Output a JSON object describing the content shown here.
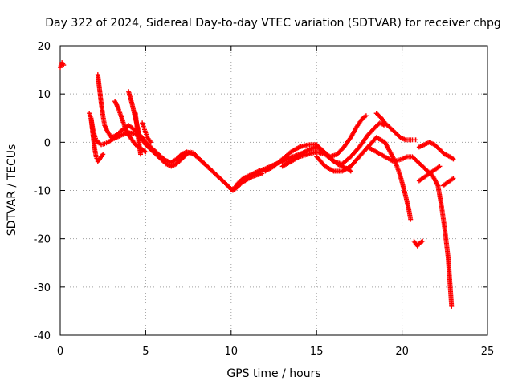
{
  "chart_data": {
    "type": "scatter",
    "title": "Day 322 of 2024, Sidereal Day-to-day VTEC variation (SDTVAR) for receiver chpg",
    "xlabel": "GPS time / hours",
    "ylabel": "SDTVAR / TECUs",
    "xlim": [
      0,
      25
    ],
    "ylim": [
      -40,
      20
    ],
    "xticks": [
      0,
      5,
      10,
      15,
      20,
      25
    ],
    "yticks": [
      -40,
      -30,
      -20,
      -10,
      0,
      10,
      20
    ],
    "grid": true,
    "marker": "+",
    "color": "#ff0000",
    "series": [
      {
        "name": "s1",
        "x": [
          0.0,
          0.1,
          0.2
        ],
        "y": [
          15.5,
          16.5,
          16.0
        ]
      },
      {
        "name": "s2",
        "x": [
          1.7,
          1.8,
          1.9,
          2.0,
          2.1,
          2.2,
          2.4,
          2.6,
          2.8,
          3.0,
          3.3,
          3.6,
          4.0,
          4.3,
          4.5,
          4.8,
          5.0,
          5.3,
          5.6,
          5.9,
          6.2,
          6.5,
          6.8,
          7.1,
          7.4,
          7.6,
          7.8,
          8.0,
          8.3,
          8.6,
          8.9,
          9.2,
          9.5,
          9.8,
          10.0,
          10.2,
          10.4,
          10.7,
          11.0,
          11.3,
          11.6,
          12.0,
          12.3,
          12.6,
          13.0,
          13.3,
          13.6,
          14.0,
          14.3,
          14.6,
          15.0,
          15.3,
          15.6,
          15.9,
          16.2,
          16.5,
          16.8,
          17.0
        ],
        "y": [
          6.0,
          5.0,
          3.0,
          1.5,
          0.5,
          0.0,
          -0.5,
          -0.3,
          0.0,
          0.5,
          1.0,
          1.5,
          2.0,
          1.8,
          1.5,
          0.5,
          -0.5,
          -1.5,
          -2.5,
          -3.5,
          -4.5,
          -5.0,
          -4.5,
          -3.5,
          -2.5,
          -2.0,
          -2.2,
          -3.0,
          -4.0,
          -5.0,
          -6.0,
          -7.0,
          -8.0,
          -9.0,
          -9.8,
          -9.5,
          -8.5,
          -7.5,
          -7.0,
          -6.5,
          -6.0,
          -5.5,
          -5.0,
          -4.5,
          -4.0,
          -3.5,
          -3.0,
          -2.5,
          -2.0,
          -1.5,
          -1.0,
          -1.5,
          -2.5,
          -3.5,
          -4.5,
          -5.0,
          -5.5,
          -6.0
        ]
      },
      {
        "name": "s3",
        "x": [
          1.8,
          1.9,
          2.0,
          2.1,
          2.2,
          2.3,
          2.4,
          2.5
        ],
        "y": [
          5.0,
          2.0,
          -1.0,
          -3.0,
          -4.0,
          -3.5,
          -3.0,
          -2.5
        ]
      },
      {
        "name": "s4",
        "x": [
          2.2,
          2.3,
          2.4,
          2.5,
          2.6,
          2.8,
          3.0,
          3.3,
          3.6,
          4.0,
          4.2,
          4.5,
          4.8,
          5.0,
          5.3,
          5.6,
          5.9,
          6.2,
          6.5,
          6.8,
          7.1,
          7.4,
          7.7,
          8.0,
          8.3,
          8.6,
          8.9,
          9.2,
          9.5,
          9.8,
          10.1,
          10.3,
          10.6,
          10.9,
          11.2,
          11.5,
          11.8
        ],
        "y": [
          14.0,
          11.0,
          8.0,
          5.5,
          3.5,
          2.0,
          1.0,
          1.5,
          2.5,
          3.5,
          3.0,
          2.0,
          1.0,
          0.0,
          -1.0,
          -2.0,
          -3.0,
          -3.8,
          -4.2,
          -3.5,
          -2.5,
          -2.0,
          -2.3,
          -3.0,
          -4.0,
          -5.0,
          -6.0,
          -7.0,
          -8.0,
          -9.0,
          -10.0,
          -9.5,
          -8.5,
          -7.8,
          -7.2,
          -6.8,
          -6.5
        ]
      },
      {
        "name": "s5",
        "x": [
          3.2,
          3.4,
          3.6,
          3.8,
          4.0,
          4.2,
          4.4,
          4.6,
          4.8,
          5.0
        ],
        "y": [
          8.5,
          7.0,
          5.0,
          3.0,
          1.5,
          0.5,
          -0.5,
          -1.0,
          -1.5,
          -2.0
        ]
      },
      {
        "name": "s6",
        "x": [
          4.0,
          4.2,
          4.4,
          4.6
        ],
        "y": [
          10.5,
          8.0,
          5.0,
          2.0
        ]
      },
      {
        "name": "s7",
        "x": [
          4.4,
          4.5,
          4.6,
          4.7
        ],
        "y": [
          6.0,
          3.0,
          0.0,
          -2.5
        ]
      },
      {
        "name": "s8",
        "x": [
          4.8,
          4.9,
          5.0,
          5.1,
          5.3
        ],
        "y": [
          4.0,
          3.0,
          2.0,
          1.0,
          0.0
        ]
      },
      {
        "name": "s9",
        "x": [
          12.0,
          12.5,
          13.0,
          13.5,
          14.0,
          14.5,
          15.0,
          15.4,
          15.8,
          16.2,
          16.6,
          17.0,
          17.4,
          17.7,
          17.9
        ],
        "y": [
          -6.0,
          -5.0,
          -3.5,
          -2.0,
          -1.0,
          -0.5,
          -0.5,
          -2.0,
          -3.0,
          -2.5,
          -1.0,
          1.0,
          3.5,
          5.0,
          5.5
        ]
      },
      {
        "name": "s10",
        "x": [
          13.0,
          13.5,
          14.0,
          14.5,
          15.0,
          15.5,
          16.0,
          16.5,
          17.0,
          17.5,
          18.0,
          18.4,
          18.7,
          19.0
        ],
        "y": [
          -5.0,
          -4.0,
          -3.0,
          -2.5,
          -2.0,
          -2.5,
          -4.0,
          -4.5,
          -3.0,
          -1.0,
          1.5,
          3.0,
          4.0,
          3.5
        ]
      },
      {
        "name": "s11",
        "x": [
          15.0,
          15.5,
          16.0,
          16.5,
          17.0,
          17.5,
          18.0,
          18.5,
          19.0,
          19.3,
          19.6,
          19.9,
          20.2,
          20.4,
          20.5
        ],
        "y": [
          -3.0,
          -5.0,
          -6.0,
          -6.0,
          -5.0,
          -3.0,
          -1.0,
          1.0,
          0.0,
          -2.0,
          -4.0,
          -7.0,
          -11.0,
          -14.0,
          -16.0
        ]
      },
      {
        "name": "s12",
        "x": [
          18.5,
          18.8,
          19.0,
          19.3,
          19.6,
          19.9,
          20.2,
          20.5,
          20.8
        ],
        "y": [
          6.0,
          5.0,
          4.0,
          3.0,
          2.0,
          1.0,
          0.5,
          0.5,
          0.5
        ]
      },
      {
        "name": "s13",
        "x": [
          18.0,
          18.5,
          19.0,
          19.5,
          20.0,
          20.3,
          20.6,
          20.9,
          21.2,
          21.5,
          21.8,
          22.1,
          22.3,
          22.5,
          22.7,
          22.8,
          22.9
        ],
        "y": [
          -1.0,
          -2.0,
          -3.0,
          -4.0,
          -3.5,
          -3.0,
          -3.0,
          -4.0,
          -5.0,
          -6.0,
          -7.0,
          -9.0,
          -13.0,
          -18.0,
          -24.0,
          -29.0,
          -34.0
        ]
      },
      {
        "name": "s14",
        "x": [
          20.7,
          20.8,
          20.9,
          21.0,
          21.2
        ],
        "y": [
          -20.5,
          -21.0,
          -21.5,
          -21.0,
          -20.5
        ]
      },
      {
        "name": "s15",
        "x": [
          21.0,
          21.2,
          21.4,
          21.6,
          21.8,
          22.0,
          22.2
        ],
        "y": [
          -8.0,
          -7.5,
          -7.0,
          -6.5,
          -6.0,
          -5.5,
          -5.0
        ]
      },
      {
        "name": "s16",
        "x": [
          22.4,
          22.6,
          22.8,
          23.0
        ],
        "y": [
          -9.0,
          -8.5,
          -8.0,
          -7.5
        ]
      },
      {
        "name": "s17",
        "x": [
          21.0,
          21.3,
          21.6,
          21.9,
          22.2,
          22.5,
          22.8,
          23.0
        ],
        "y": [
          -1.0,
          -0.5,
          0.0,
          -0.5,
          -1.5,
          -2.5,
          -3.0,
          -3.5
        ]
      }
    ]
  }
}
